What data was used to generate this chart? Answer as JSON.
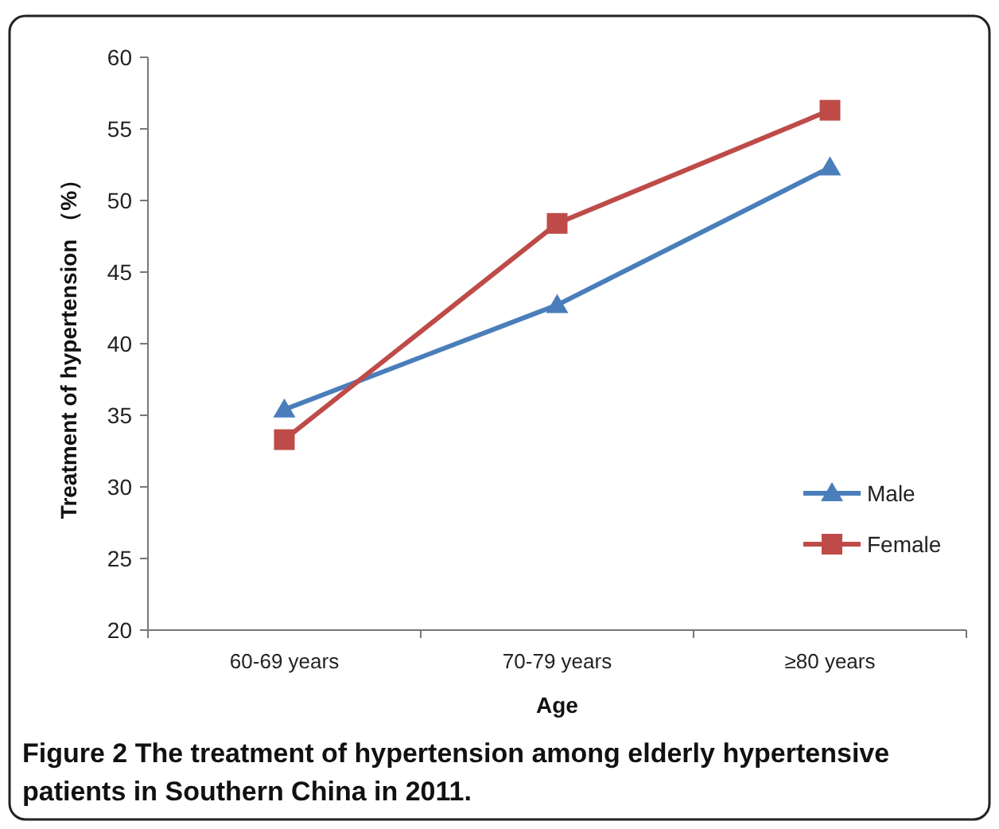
{
  "chart_data": {
    "type": "line",
    "xlabel": "Age",
    "ylabel": "Treatment of hypertension （%）",
    "categories": [
      "60-69 years",
      "70-79 years",
      "≥80 years"
    ],
    "series": [
      {
        "name": "Male",
        "color": "#4a7ebb",
        "marker": "triangle",
        "values": [
          35.4,
          42.7,
          52.3
        ]
      },
      {
        "name": "Female",
        "color": "#be4b48",
        "marker": "square",
        "values": [
          33.3,
          48.4,
          56.3
        ]
      }
    ],
    "ylim": [
      20,
      60
    ],
    "yticks": [
      20,
      25,
      30,
      35,
      40,
      45,
      50,
      55,
      60
    ],
    "grid": false,
    "legend": "right",
    "annotations": [
      "Figure 2 The treatment of hypertension among elderly hypertensive patients in Southern China in 2011."
    ]
  }
}
